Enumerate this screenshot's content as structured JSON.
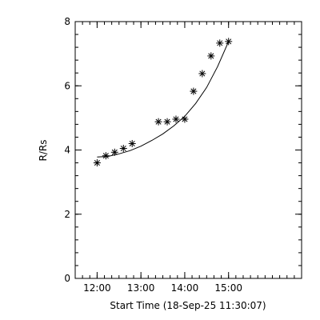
{
  "chart_data": {
    "type": "scatter",
    "title": "",
    "xlabel": "Start Time (18-Sep-25 11:30:07)",
    "ylabel": "R/Rs",
    "xlim": [
      "11:30",
      "16:40"
    ],
    "ylim": [
      0,
      8
    ],
    "x_ticks": [
      "12:00",
      "13:00",
      "14:00",
      "15:00"
    ],
    "y_ticks": [
      0,
      2,
      4,
      6,
      8
    ],
    "grid": false,
    "colors": {
      "axes": "#000000",
      "marker": "#000000",
      "curve": "#000000"
    },
    "series": [
      {
        "kind": "points",
        "marker": "asterisk",
        "points": [
          {
            "x": "12:00",
            "y": 3.6
          },
          {
            "x": "12:12",
            "y": 3.82
          },
          {
            "x": "12:24",
            "y": 3.93
          },
          {
            "x": "12:36",
            "y": 4.05
          },
          {
            "x": "12:48",
            "y": 4.2
          },
          {
            "x": "13:24",
            "y": 4.88
          },
          {
            "x": "13:36",
            "y": 4.88
          },
          {
            "x": "13:48",
            "y": 4.96
          },
          {
            "x": "14:00",
            "y": 4.96
          },
          {
            "x": "14:12",
            "y": 5.83
          },
          {
            "x": "14:24",
            "y": 6.38
          },
          {
            "x": "14:36",
            "y": 6.93
          },
          {
            "x": "14:48",
            "y": 7.33
          },
          {
            "x": "15:00",
            "y": 7.38
          }
        ]
      },
      {
        "kind": "fit",
        "points": [
          {
            "x": "12:00",
            "y": 3.78
          },
          {
            "x": "12:15",
            "y": 3.8
          },
          {
            "x": "12:30",
            "y": 3.88
          },
          {
            "x": "12:45",
            "y": 3.98
          },
          {
            "x": "13:00",
            "y": 4.12
          },
          {
            "x": "13:15",
            "y": 4.3
          },
          {
            "x": "13:30",
            "y": 4.5
          },
          {
            "x": "13:45",
            "y": 4.75
          },
          {
            "x": "14:00",
            "y": 5.05
          },
          {
            "x": "14:15",
            "y": 5.45
          },
          {
            "x": "14:30",
            "y": 5.95
          },
          {
            "x": "14:45",
            "y": 6.6
          },
          {
            "x": "15:00",
            "y": 7.38
          }
        ]
      }
    ]
  }
}
